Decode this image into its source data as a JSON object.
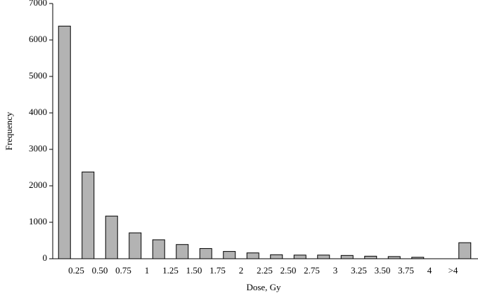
{
  "chart_data": {
    "type": "bar",
    "x_label": "Dose, Gy",
    "y_label": "Frequency",
    "categories": [
      null,
      "0.25",
      "0.50",
      "0.75",
      "1",
      "1.25",
      "1.50",
      "1.75",
      "2",
      "2.25",
      "2.50",
      "2.75",
      "3",
      "3.25",
      "3.50",
      "3.75",
      "4",
      ">4"
    ],
    "values": [
      6380,
      2380,
      1170,
      710,
      520,
      390,
      280,
      200,
      160,
      110,
      100,
      100,
      90,
      70,
      60,
      40,
      0,
      440
    ],
    "color": "#b3b3b3",
    "ylim": [
      0,
      7000
    ],
    "yticks": [
      0,
      1000,
      2000,
      3000,
      4000,
      5000,
      6000,
      7000
    ]
  }
}
